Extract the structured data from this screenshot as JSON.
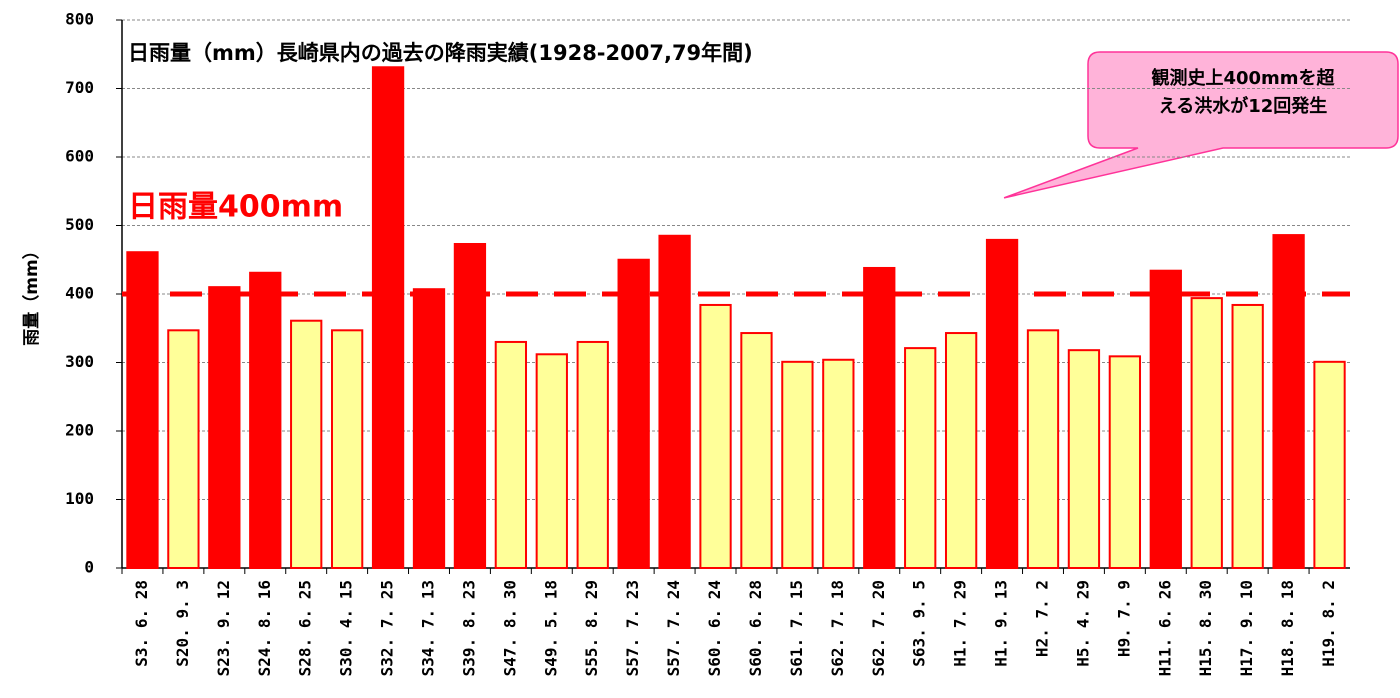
{
  "chart_data": {
    "type": "bar",
    "title": "日雨量（mm）長崎県内の過去の降雨実績(1928-2007,79年間)",
    "y_label": "雨量（mm）",
    "categories": [
      "S3. 6. 28",
      "S20. 9. 3",
      "S23. 9. 12",
      "S24. 8. 16",
      "S28. 6. 25",
      "S30. 4. 15",
      "S32. 7. 25",
      "S34. 7. 13",
      "S39. 8. 23",
      "S47. 8. 30",
      "S49. 5. 18",
      "S55. 8. 29",
      "S57. 7. 23",
      "S57. 7. 24",
      "S60. 6. 24",
      "S60. 6. 28",
      "S61. 7. 15",
      "S62. 7. 18",
      "S62. 7. 20",
      "S63. 9. 5",
      "H1. 7. 29",
      "H1. 9. 13",
      "H2. 7. 2",
      "H5. 4. 29",
      "H9. 7. 9",
      "H11. 6. 26",
      "H15. 8. 30",
      "H17. 9. 10",
      "H18. 8. 18",
      "H19. 8. 2"
    ],
    "values": [
      461,
      347,
      410,
      431,
      361,
      347,
      731,
      407,
      473,
      330,
      312,
      330,
      450,
      485,
      384,
      343,
      301,
      304,
      438,
      321,
      343,
      479,
      347,
      318,
      309,
      434,
      394,
      384,
      486,
      301
    ],
    "colors": {
      "above": "#ff0000",
      "below": "#ffff99",
      "edge": "#ff0000"
    },
    "ylim": [
      0,
      800
    ],
    "yticks": [
      0,
      100,
      200,
      300,
      400,
      500,
      600,
      700,
      800
    ],
    "grid": true,
    "reference_line": {
      "value": 400,
      "label": "日雨量400mm",
      "color": "#ff0000"
    },
    "annotation": {
      "lines": [
        "観測史上400mmを超",
        "える洪水が12回発生"
      ],
      "target": 21
    }
  }
}
